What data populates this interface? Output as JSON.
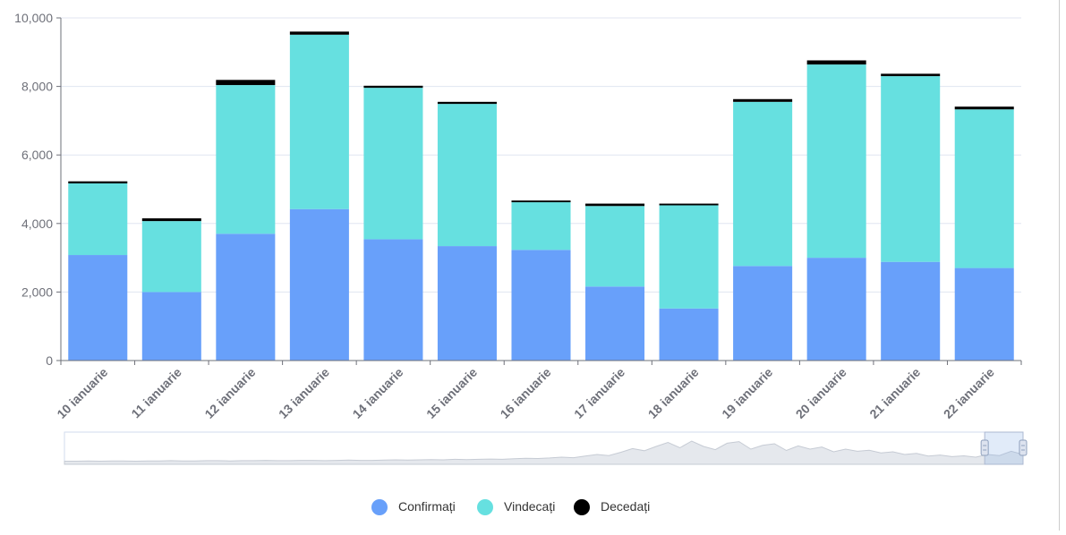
{
  "chart_data": {
    "type": "bar",
    "stacked": true,
    "categories": [
      "10 ianuarie",
      "11 ianuarie",
      "12 ianuarie",
      "13 ianuarie",
      "14 ianuarie",
      "15 ianuarie",
      "16 ianuarie",
      "17 ianuarie",
      "18 ianuarie",
      "19 ianuarie",
      "20 ianuarie",
      "21 ianuarie",
      "22 ianuarie"
    ],
    "series": [
      {
        "name": "Confirmați",
        "color": "#68a0fa",
        "values": [
          3080,
          2000,
          3700,
          4420,
          3540,
          3340,
          3230,
          2160,
          1520,
          2760,
          3000,
          2880,
          2700
        ]
      },
      {
        "name": "Vindecați",
        "color": "#66e0e0",
        "values": [
          2090,
          2070,
          4340,
          5090,
          4420,
          4150,
          1390,
          2350,
          3010,
          4790,
          5640,
          5420,
          4630
        ]
      },
      {
        "name": "Decedați",
        "color": "#000000",
        "values": [
          60,
          80,
          150,
          90,
          60,
          60,
          50,
          70,
          50,
          80,
          120,
          70,
          80
        ]
      }
    ],
    "ylim": [
      0,
      10000
    ],
    "yticks": [
      "0",
      "2,000",
      "4,000",
      "6,000",
      "8,000",
      "10,000"
    ],
    "grid": true,
    "legend_position": "bottom-center",
    "datazoom": {
      "present": true,
      "window_fraction": [
        0.96,
        1.0
      ],
      "overview_values": [
        0.05,
        0.05,
        0.06,
        0.05,
        0.06,
        0.06,
        0.05,
        0.06,
        0.06,
        0.07,
        0.06,
        0.06,
        0.07,
        0.07,
        0.06,
        0.07,
        0.07,
        0.08,
        0.07,
        0.07,
        0.08,
        0.08,
        0.07,
        0.08,
        0.09,
        0.08,
        0.08,
        0.09,
        0.1,
        0.09,
        0.1,
        0.11,
        0.1,
        0.12,
        0.11,
        0.12,
        0.13,
        0.12,
        0.14,
        0.16,
        0.15,
        0.17,
        0.2,
        0.18,
        0.24,
        0.3,
        0.26,
        0.38,
        0.52,
        0.44,
        0.6,
        0.75,
        0.55,
        0.8,
        0.6,
        0.48,
        0.72,
        0.78,
        0.5,
        0.64,
        0.7,
        0.45,
        0.62,
        0.5,
        0.58,
        0.4,
        0.5,
        0.42,
        0.46,
        0.36,
        0.4,
        0.3,
        0.34,
        0.24,
        0.28,
        0.22,
        0.25,
        0.2,
        0.3,
        0.26,
        0.42,
        0.3
      ]
    }
  }
}
